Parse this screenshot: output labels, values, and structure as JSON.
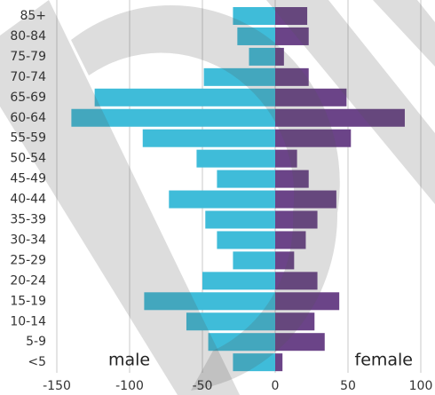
{
  "chart_data": {
    "type": "pyramid",
    "categories": [
      "85+",
      "80-84",
      "75-79",
      "70-74",
      "65-69",
      "60-64",
      "55-59",
      "50-54",
      "45-49",
      "40-44",
      "35-39",
      "30-34",
      "25-29",
      "20-24",
      "15-19",
      "10-14",
      "5-9",
      "<5"
    ],
    "series": [
      {
        "name": "male",
        "color": "#3fbcd9",
        "values": [
          -29,
          -26,
          -18,
          -49,
          -124,
          -140,
          -91,
          -54,
          -40,
          -73,
          -48,
          -40,
          -29,
          -50,
          -90,
          -61,
          -46,
          -29
        ]
      },
      {
        "name": "female",
        "color": "#6b4488",
        "values": [
          22,
          23,
          6,
          23,
          49,
          89,
          52,
          15,
          23,
          42,
          29,
          21,
          13,
          29,
          44,
          27,
          34,
          5
        ]
      }
    ],
    "xlim": [
      -150,
      100
    ],
    "xticks": [
      -150,
      -100,
      -50,
      0,
      50,
      100
    ],
    "grid": true
  }
}
